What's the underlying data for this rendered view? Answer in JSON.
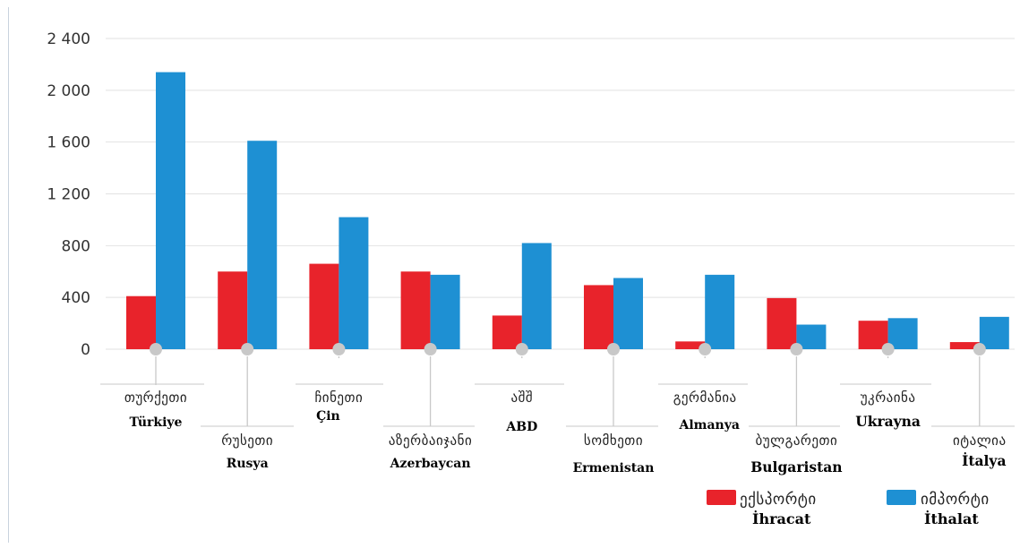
{
  "chart_data": {
    "type": "bar",
    "ylim": [
      0,
      2400
    ],
    "yticks": [
      0,
      400,
      800,
      1200,
      1600,
      2000,
      2400
    ],
    "ytick_labels": [
      "0",
      "400",
      "800",
      "1 200",
      "1 600",
      "2 000",
      "2 400"
    ],
    "grid": true,
    "legend_position": "bottom-right",
    "categories": [
      {
        "geo": "თურქეთი",
        "tr": "Türkiye"
      },
      {
        "geo": "რუსეთი",
        "tr": "Rusya"
      },
      {
        "geo": "ჩინეთი",
        "tr": "Çin"
      },
      {
        "geo": "აზერბაიჯანი",
        "tr": "Azerbaycan"
      },
      {
        "geo": "აშშ",
        "tr": "ABD"
      },
      {
        "geo": "სომხეთი",
        "tr": "Ermenistan"
      },
      {
        "geo": "გერმანია",
        "tr": "Almanya"
      },
      {
        "geo": "ბულგარეთი",
        "tr": "Bulgaristan"
      },
      {
        "geo": "უკრაინა",
        "tr": "Ukrayna"
      },
      {
        "geo": "იტალია",
        "tr": "İtalya"
      }
    ],
    "series": [
      {
        "name": "ექსპორტი",
        "name_tr": "İhracat",
        "color": "#e8232b",
        "values": [
          410,
          600,
          660,
          600,
          260,
          495,
          60,
          395,
          220,
          55
        ]
      },
      {
        "name": "იმპორტი",
        "name_tr": "İthalat",
        "color": "#1e90d3",
        "values": [
          2140,
          1610,
          1020,
          575,
          820,
          550,
          575,
          190,
          240,
          250
        ]
      }
    ]
  },
  "colors": {
    "grid": "#e2e2e2",
    "axis_marker": "#c8c8c8",
    "leader_line": "#c8c8c8",
    "left_rule": "#c9d3de"
  }
}
